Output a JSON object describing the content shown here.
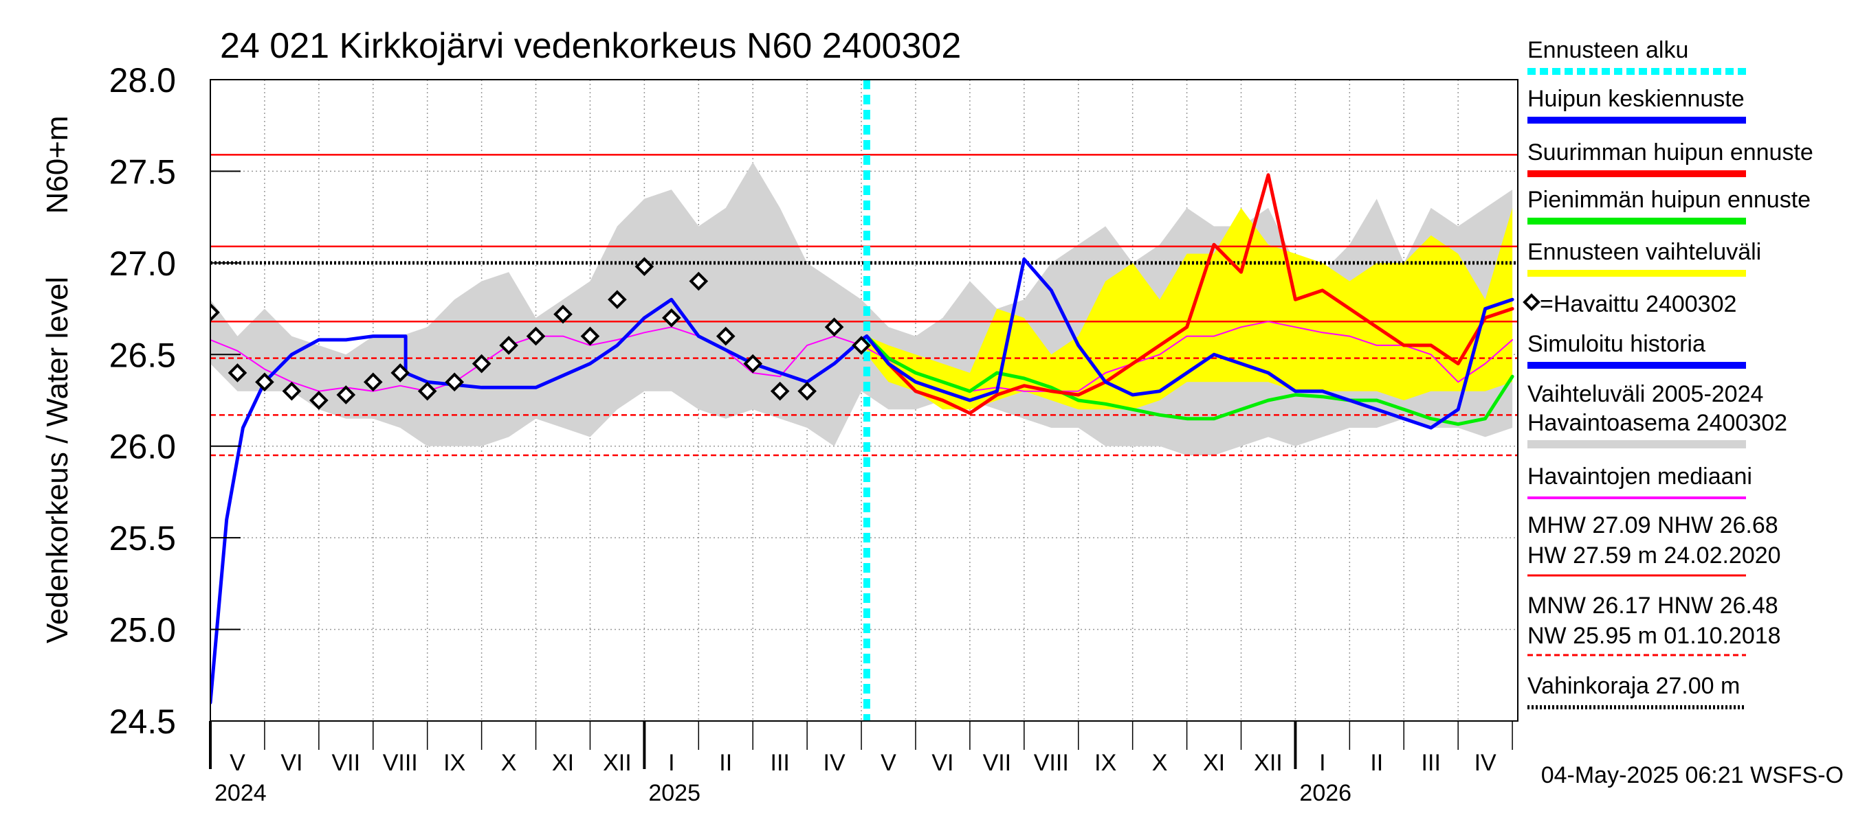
{
  "chart_data": {
    "type": "line",
    "title": "24 021 Kirkkojärvi vedenkorkeus N60 2400302",
    "ylabel": "Vedenkorkeus / Water level",
    "yunit": "N60+m",
    "ylim": [
      24.5,
      28.0
    ],
    "yticks": [
      "28.0",
      "27.5",
      "27.0",
      "26.5",
      "26.0",
      "25.5",
      "25.0",
      "24.5"
    ],
    "xlim": [
      0,
      24.1
    ],
    "months": [
      "V",
      "VI",
      "VII",
      "VIII",
      "IX",
      "X",
      "XI",
      "XII",
      "I",
      "II",
      "III",
      "IV",
      "V",
      "VI",
      "VII",
      "VIII",
      "IX",
      "X",
      "XI",
      "XII",
      "I",
      "II",
      "III",
      "IV"
    ],
    "years": [
      {
        "label": "2024",
        "x": 0
      },
      {
        "label": "2025",
        "x": 8
      },
      {
        "label": "2026",
        "x": 20
      }
    ],
    "forecast_start": 12.1,
    "reference_lines": [
      {
        "name": "HW",
        "value": 27.59,
        "style": "solid"
      },
      {
        "name": "MHW",
        "value": 27.09,
        "style": "solid"
      },
      {
        "name": "NHW",
        "value": 26.68,
        "style": "solid"
      },
      {
        "name": "HNW",
        "value": 26.48,
        "style": "dashed"
      },
      {
        "name": "MNW",
        "value": 26.17,
        "style": "dashed"
      },
      {
        "name": "NW",
        "value": 25.95,
        "style": "dashed"
      },
      {
        "name": "Vahinkoraja",
        "value": 27.0,
        "style": "dotted"
      }
    ],
    "series": [
      {
        "name": "Vaihteluväli 2005-2024 Havaintoasema 2400302",
        "type": "band",
        "color": "#d3d3d3",
        "x": [
          0,
          0.5,
          1,
          1.5,
          2,
          2.5,
          3,
          3.5,
          4,
          4.5,
          5,
          5.5,
          6,
          6.5,
          7,
          7.5,
          8,
          8.5,
          9,
          9.5,
          10,
          10.5,
          11,
          11.5,
          12,
          12.5,
          13,
          13.5,
          14,
          14.5,
          15,
          15.5,
          16,
          16.5,
          17,
          17.5,
          18,
          18.5,
          19,
          19.5,
          20,
          20.5,
          21,
          21.5,
          22,
          22.5,
          23,
          23.5,
          24
        ],
        "upper": [
          26.8,
          26.6,
          26.75,
          26.6,
          26.55,
          26.5,
          26.6,
          26.6,
          26.65,
          26.8,
          26.9,
          26.95,
          26.7,
          26.8,
          26.9,
          27.2,
          27.35,
          27.4,
          27.2,
          27.3,
          27.55,
          27.3,
          27.0,
          26.9,
          26.8,
          26.65,
          26.6,
          26.7,
          26.9,
          26.75,
          26.8,
          27.0,
          27.1,
          27.2,
          27.0,
          27.1,
          27.3,
          27.2,
          27.2,
          27.3,
          27.0,
          26.95,
          27.1,
          27.35,
          27.0,
          27.3,
          27.2,
          27.3,
          27.4
        ],
        "lower": [
          26.45,
          26.3,
          26.3,
          26.3,
          26.2,
          26.15,
          26.15,
          26.1,
          26.0,
          26.0,
          26.0,
          26.05,
          26.15,
          26.1,
          26.05,
          26.2,
          26.3,
          26.3,
          26.2,
          26.15,
          26.2,
          26.15,
          26.1,
          26.0,
          26.3,
          26.2,
          26.2,
          26.25,
          26.25,
          26.2,
          26.15,
          26.1,
          26.1,
          26.0,
          26.0,
          26.0,
          25.95,
          25.95,
          26.0,
          26.05,
          26.0,
          26.05,
          26.1,
          26.1,
          26.15,
          26.1,
          26.1,
          26.05,
          26.1
        ]
      },
      {
        "name": "Ennusteen vaihteluväli",
        "type": "band",
        "color": "#ffff00",
        "x": [
          12.1,
          12.5,
          13,
          13.5,
          14,
          14.5,
          15,
          15.5,
          16,
          16.5,
          17,
          17.5,
          18,
          18.5,
          19,
          19.5,
          20,
          20.5,
          21,
          21.5,
          22,
          22.5,
          23,
          23.5,
          24
        ],
        "upper": [
          26.6,
          26.55,
          26.5,
          26.45,
          26.4,
          26.75,
          26.7,
          26.5,
          26.6,
          26.9,
          27.0,
          26.8,
          27.05,
          27.05,
          27.3,
          27.1,
          27.05,
          27.0,
          26.9,
          27.0,
          27.0,
          27.15,
          27.05,
          26.8,
          27.3
        ],
        "lower": [
          26.5,
          26.35,
          26.3,
          26.2,
          26.2,
          26.25,
          26.3,
          26.25,
          26.2,
          26.2,
          26.2,
          26.25,
          26.35,
          26.35,
          26.35,
          26.35,
          26.3,
          26.3,
          26.3,
          26.3,
          26.25,
          26.3,
          26.3,
          26.3,
          26.35
        ]
      },
      {
        "name": "Havaintojen mediaani",
        "type": "line",
        "color": "#ff00ff",
        "width": 2,
        "x": [
          0,
          0.5,
          1,
          1.5,
          2,
          2.5,
          3,
          3.5,
          4,
          4.5,
          5,
          5.5,
          6,
          6.5,
          7,
          7.5,
          8,
          8.5,
          9,
          9.5,
          10,
          10.5,
          11,
          11.5,
          12,
          12.5,
          13,
          13.5,
          14,
          14.5,
          15,
          15.5,
          16,
          16.5,
          17,
          17.5,
          18,
          18.5,
          19,
          19.5,
          20,
          20.5,
          21,
          21.5,
          22,
          22.5,
          23,
          23.5,
          24
        ],
        "y": [
          26.58,
          26.52,
          26.42,
          26.35,
          26.3,
          26.32,
          26.3,
          26.33,
          26.3,
          26.35,
          26.45,
          26.55,
          26.6,
          26.6,
          26.55,
          26.58,
          26.62,
          26.65,
          26.6,
          26.52,
          26.4,
          26.38,
          26.55,
          26.6,
          26.55,
          26.47,
          26.4,
          26.35,
          26.3,
          26.32,
          26.3,
          26.3,
          26.3,
          26.4,
          26.45,
          26.5,
          26.6,
          26.6,
          26.65,
          26.68,
          26.65,
          26.62,
          26.6,
          26.55,
          26.55,
          26.5,
          26.35,
          26.45,
          26.58
        ]
      },
      {
        "name": "Pienimmän huipun ennuste",
        "type": "line",
        "color": "#00ee00",
        "width": 5,
        "x": [
          12.1,
          12.5,
          13,
          13.5,
          14,
          14.5,
          15,
          15.5,
          16,
          16.5,
          17,
          17.5,
          18,
          18.5,
          19,
          19.5,
          20,
          20.5,
          21,
          21.5,
          22,
          22.5,
          23,
          23.5,
          24
        ],
        "y": [
          26.6,
          26.48,
          26.4,
          26.35,
          26.3,
          26.4,
          26.37,
          26.32,
          26.25,
          26.23,
          26.2,
          26.17,
          26.15,
          26.15,
          26.2,
          26.25,
          26.28,
          26.27,
          26.25,
          26.25,
          26.2,
          26.15,
          26.12,
          26.15,
          26.38
        ]
      },
      {
        "name": "Suurimman huipun ennuste",
        "type": "line",
        "color": "#ff0000",
        "width": 5,
        "x": [
          12.1,
          12.5,
          13,
          13.5,
          14,
          14.5,
          15,
          15.5,
          16,
          16.5,
          17,
          17.5,
          18,
          18.5,
          19,
          19.5,
          20,
          20.5,
          21,
          21.5,
          22,
          22.5,
          23,
          23.5,
          24
        ],
        "y": [
          26.6,
          26.45,
          26.3,
          26.25,
          26.18,
          26.28,
          26.33,
          26.3,
          26.28,
          26.35,
          26.45,
          26.55,
          26.65,
          27.1,
          26.95,
          27.48,
          26.8,
          26.85,
          26.75,
          26.65,
          26.55,
          26.55,
          26.45,
          26.7,
          26.75
        ]
      },
      {
        "name": "Simuloitu historia",
        "type": "line",
        "color": "#0000ff",
        "width": 5,
        "x": [
          0,
          0.3,
          0.6,
          1,
          1.5,
          2,
          2.5,
          3,
          3.3,
          3.6,
          3.6,
          4,
          5,
          6,
          7,
          7.5,
          8,
          8.5,
          9,
          10,
          11,
          11.5,
          12,
          12.1
        ],
        "y": [
          24.6,
          25.6,
          26.1,
          26.35,
          26.5,
          26.58,
          26.58,
          26.6,
          26.6,
          26.6,
          26.4,
          26.35,
          26.32,
          26.32,
          26.45,
          26.55,
          26.7,
          26.8,
          26.6,
          26.45,
          26.35,
          26.45,
          26.58,
          26.6
        ]
      },
      {
        "name": "Huipun keskiennuste",
        "type": "line",
        "color": "#0000ff",
        "width": 5,
        "x": [
          12.1,
          12.5,
          13,
          13.5,
          14,
          14.5,
          15,
          15.5,
          16,
          16.5,
          17,
          17.5,
          18,
          18.5,
          19,
          19.5,
          20,
          20.5,
          21,
          21.5,
          22,
          22.5,
          23,
          23.5,
          24
        ],
        "y": [
          26.6,
          26.45,
          26.35,
          26.3,
          26.25,
          26.3,
          27.02,
          26.85,
          26.55,
          26.35,
          26.28,
          26.3,
          26.4,
          26.5,
          26.45,
          26.4,
          26.3,
          26.3,
          26.25,
          26.2,
          26.15,
          26.1,
          26.2,
          26.75,
          26.8
        ]
      },
      {
        "name": "Havaittu 2400302",
        "type": "marker",
        "color": "#000000",
        "x": [
          0,
          0.5,
          1,
          1.5,
          2,
          2.5,
          3,
          3.5,
          4,
          4.5,
          5,
          5.5,
          6,
          6.5,
          7,
          7.5,
          8,
          8.5,
          9,
          9.5,
          10,
          10.5,
          11,
          11.5,
          12
        ],
        "y": [
          26.73,
          26.4,
          26.35,
          26.3,
          26.25,
          26.28,
          26.35,
          26.4,
          26.3,
          26.35,
          26.45,
          26.55,
          26.6,
          26.72,
          26.6,
          26.8,
          26.98,
          26.7,
          26.9,
          26.6,
          26.45,
          26.3,
          26.3,
          26.65,
          26.55
        ]
      }
    ],
    "legend": {
      "position": "right",
      "items": [
        {
          "label": "Ennusteen alku",
          "color": "#00ffff",
          "style": "dashed"
        },
        {
          "label": "Huipun keskiennuste",
          "color": "#0000ff",
          "style": "solid"
        },
        {
          "label": "Suurimman huipun ennuste",
          "color": "#ff0000",
          "style": "solid"
        },
        {
          "label": "Pienimmän huipun ennuste",
          "color": "#00ee00",
          "style": "solid"
        },
        {
          "label": "Ennusteen vaihteluväli",
          "color": "#ffff00",
          "style": "solid"
        },
        {
          "label": "=Havaittu 2400302",
          "color": "#000000",
          "style": "marker"
        },
        {
          "label": "Simuloitu historia",
          "color": "#0000ff",
          "style": "solid"
        },
        {
          "label1": "Vaihteluväli 2005-2024",
          "label2": " Havaintoasema 2400302",
          "color": "#d3d3d3",
          "style": "solid"
        },
        {
          "label": "Havaintojen mediaani",
          "color": "#ff00ff",
          "style": "thin"
        }
      ],
      "stats": {
        "line1": "MHW  27.09 NHW  26.68",
        "line2": "HW  27.59 m 24.02.2020",
        "line3": "MNW  26.17 HNW  26.48",
        "line4": "NW  25.95 m 01.10.2018",
        "line5": "Vahinkoraja 27.00 m"
      }
    },
    "footer": "04-May-2025 06:21 WSFS-O"
  }
}
